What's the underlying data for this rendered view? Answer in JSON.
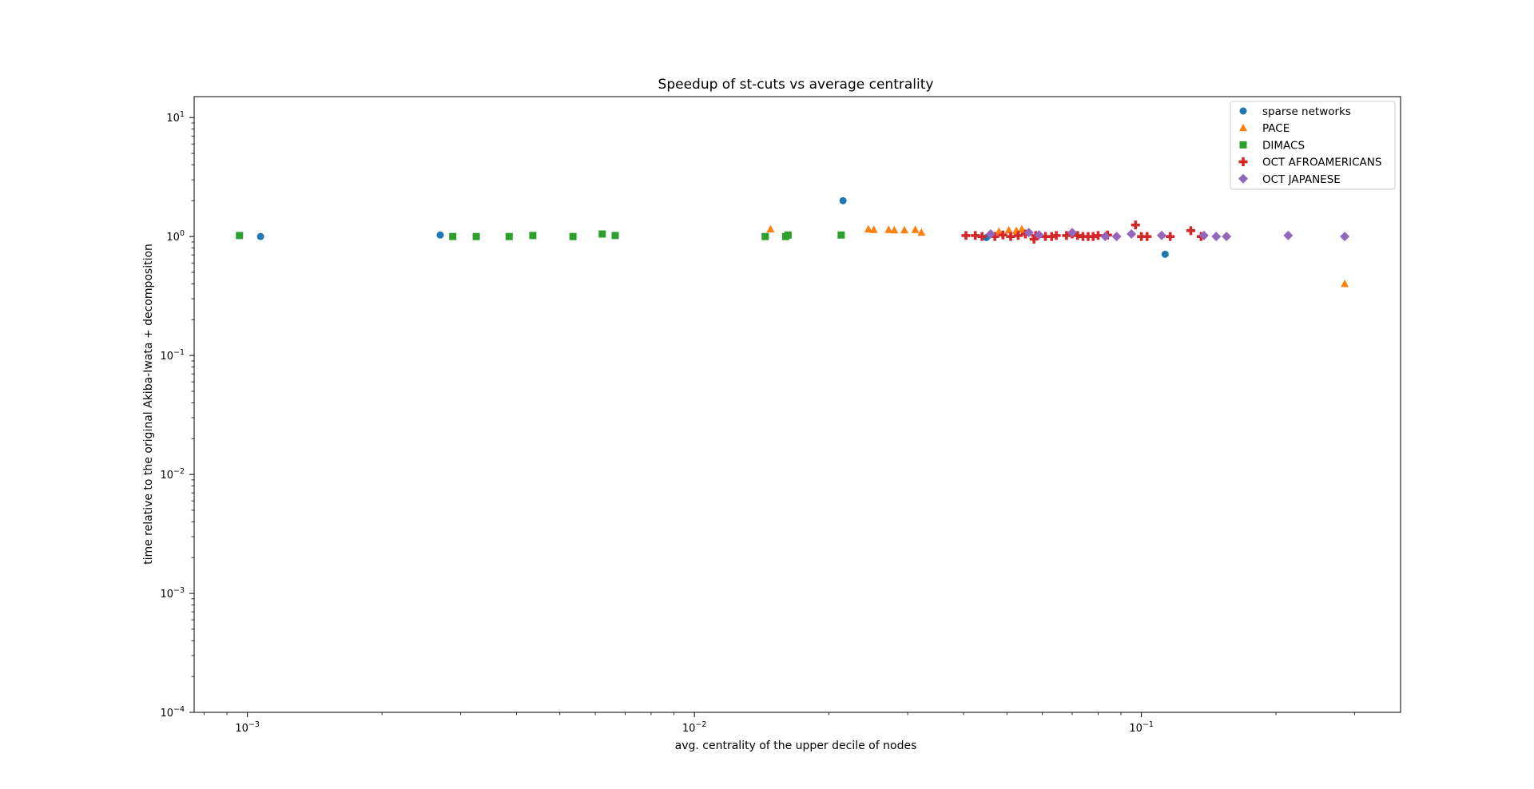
{
  "chart_data": {
    "type": "scatter",
    "title": "Speedup of st-cuts vs average centrality",
    "xlabel": "avg. centrality of the upper decile of nodes",
    "ylabel": "time relative to the original Akiba-Iwata + decomposition",
    "xscale": "log",
    "yscale": "log",
    "xlim": [
      0.00076,
      0.38
    ],
    "ylim": [
      0.0001,
      15
    ],
    "x_ticks": [
      {
        "value": 0.001,
        "base": "10",
        "exp": "−3"
      },
      {
        "value": 0.01,
        "base": "10",
        "exp": "−2"
      },
      {
        "value": 0.1,
        "base": "10",
        "exp": "−1"
      }
    ],
    "y_ticks": [
      {
        "value": 10,
        "base": "10",
        "exp": "1"
      },
      {
        "value": 1,
        "base": "10",
        "exp": "0"
      },
      {
        "value": 0.1,
        "base": "10",
        "exp": "−1"
      },
      {
        "value": 0.01,
        "base": "10",
        "exp": "−2"
      },
      {
        "value": 0.001,
        "base": "10",
        "exp": "−3"
      },
      {
        "value": 0.0001,
        "base": "10",
        "exp": "−4"
      }
    ],
    "grid": false,
    "legend_position": "top-right",
    "series": [
      {
        "name": "sparse networks",
        "marker": "circle",
        "color": "#1f77b4",
        "points": [
          [
            0.00107,
            1.0
          ],
          [
            0.0027,
            1.03
          ],
          [
            0.0215,
            2.0
          ],
          [
            0.045,
            0.98
          ],
          [
            0.113,
            0.71
          ]
        ]
      },
      {
        "name": "PACE",
        "marker": "triangle",
        "color": "#ff7f0e",
        "points": [
          [
            0.0148,
            1.15
          ],
          [
            0.0245,
            1.15
          ],
          [
            0.0252,
            1.14
          ],
          [
            0.0272,
            1.14
          ],
          [
            0.028,
            1.13
          ],
          [
            0.0295,
            1.13
          ],
          [
            0.0312,
            1.14
          ],
          [
            0.0322,
            1.08
          ],
          [
            0.048,
            1.1
          ],
          [
            0.0505,
            1.13
          ],
          [
            0.0525,
            1.12
          ],
          [
            0.054,
            1.15
          ],
          [
            0.285,
            0.4
          ]
        ]
      },
      {
        "name": "DIMACS",
        "marker": "square",
        "color": "#2ca02c",
        "points": [
          [
            0.00096,
            1.02
          ],
          [
            0.00288,
            1.0
          ],
          [
            0.00325,
            1.0
          ],
          [
            0.00385,
            1.0
          ],
          [
            0.00435,
            1.02
          ],
          [
            0.00535,
            1.0
          ],
          [
            0.00622,
            1.05
          ],
          [
            0.00665,
            1.02
          ],
          [
            0.0144,
            1.0
          ],
          [
            0.016,
            1.0
          ],
          [
            0.0162,
            1.03
          ],
          [
            0.0213,
            1.03
          ]
        ]
      },
      {
        "name": "OCT AFROAMERICANS",
        "marker": "plus",
        "color": "#d62728",
        "points": [
          [
            0.0405,
            1.02
          ],
          [
            0.0425,
            1.02
          ],
          [
            0.044,
            1.0
          ],
          [
            0.047,
            1.0
          ],
          [
            0.049,
            1.03
          ],
          [
            0.051,
            1.0
          ],
          [
            0.053,
            1.02
          ],
          [
            0.055,
            1.05
          ],
          [
            0.0575,
            0.95
          ],
          [
            0.058,
            1.02
          ],
          [
            0.061,
            1.0
          ],
          [
            0.063,
            1.0
          ],
          [
            0.0645,
            1.02
          ],
          [
            0.068,
            1.02
          ],
          [
            0.07,
            1.05
          ],
          [
            0.072,
            1.02
          ],
          [
            0.074,
            1.0
          ],
          [
            0.076,
            1.0
          ],
          [
            0.078,
            1.0
          ],
          [
            0.08,
            1.02
          ],
          [
            0.084,
            1.03
          ],
          [
            0.097,
            1.25
          ],
          [
            0.1,
            1.0
          ],
          [
            0.103,
            1.0
          ],
          [
            0.116,
            1.0
          ],
          [
            0.129,
            1.12
          ],
          [
            0.136,
            1.0
          ]
        ]
      },
      {
        "name": "OCT JAPANESE",
        "marker": "diamond",
        "color": "#9467bd",
        "points": [
          [
            0.046,
            1.05
          ],
          [
            0.056,
            1.08
          ],
          [
            0.059,
            1.03
          ],
          [
            0.07,
            1.08
          ],
          [
            0.083,
            1.0
          ],
          [
            0.088,
            1.0
          ],
          [
            0.095,
            1.05
          ],
          [
            0.111,
            1.02
          ],
          [
            0.138,
            1.02
          ],
          [
            0.147,
            1.0
          ],
          [
            0.155,
            1.0
          ],
          [
            0.213,
            1.02
          ],
          [
            0.285,
            1.0
          ]
        ]
      }
    ]
  }
}
